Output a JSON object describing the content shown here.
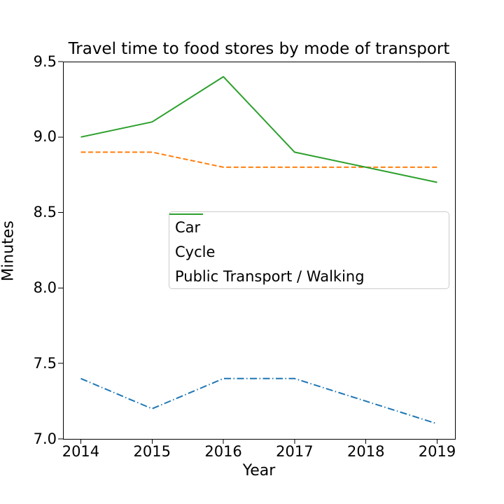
{
  "chart_data": {
    "type": "line",
    "title": "Travel time to food stores by mode of transport",
    "xlabel": "Year",
    "ylabel": "Minutes",
    "x": [
      2014,
      2015,
      2016,
      2017,
      2018,
      2019
    ],
    "xticklabels": [
      "2014",
      "2015",
      "2016",
      "2017",
      "2018",
      "2019"
    ],
    "yticks": [
      7.0,
      7.5,
      8.0,
      8.5,
      9.0,
      9.5
    ],
    "yticklabels": [
      "7.0",
      "7.5",
      "8.0",
      "8.5",
      "9.0",
      "9.5"
    ],
    "ylim": [
      7.0,
      9.5
    ],
    "grid": false,
    "legend_position": "inside-center",
    "series": [
      {
        "name": "Car",
        "color": "#1f77b4",
        "linestyle": "dashdot",
        "values": [
          7.4,
          7.2,
          7.4,
          7.4,
          7.25,
          7.1
        ]
      },
      {
        "name": "Cycle",
        "color": "#ff7f0e",
        "linestyle": "dashed",
        "values": [
          8.9,
          8.9,
          8.8,
          8.8,
          8.8,
          8.8
        ]
      },
      {
        "name": "Public Transport / Walking",
        "color": "#2ca02c",
        "linestyle": "solid",
        "values": [
          9.0,
          9.1,
          9.4,
          8.9,
          8.8,
          8.7
        ]
      }
    ]
  }
}
